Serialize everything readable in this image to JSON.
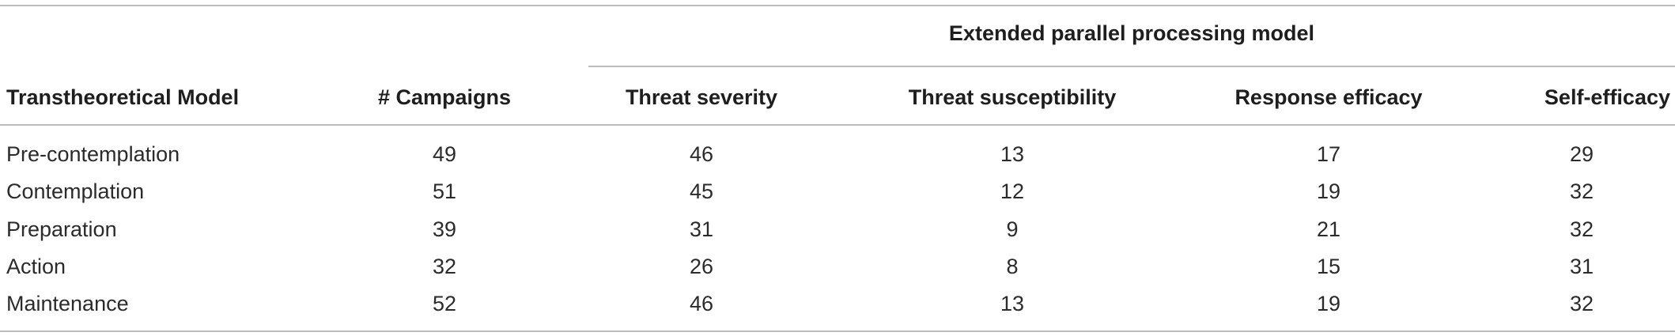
{
  "table": {
    "group_header": "Extended parallel processing model",
    "columns": [
      "Transtheoretical Model",
      "# Campaigns",
      "Threat severity",
      "Threat susceptibility",
      "Response efficacy",
      "Self-efficacy"
    ],
    "rows": [
      [
        "Pre-contemplation",
        "49",
        "46",
        "13",
        "17",
        "29"
      ],
      [
        "Contemplation",
        "51",
        "45",
        "12",
        "19",
        "32"
      ],
      [
        "Preparation",
        "39",
        "31",
        "9",
        "21",
        "32"
      ],
      [
        "Action",
        "32",
        "26",
        "8",
        "15",
        "31"
      ],
      [
        "Maintenance",
        "52",
        "46",
        "13",
        "19",
        "32"
      ]
    ]
  }
}
